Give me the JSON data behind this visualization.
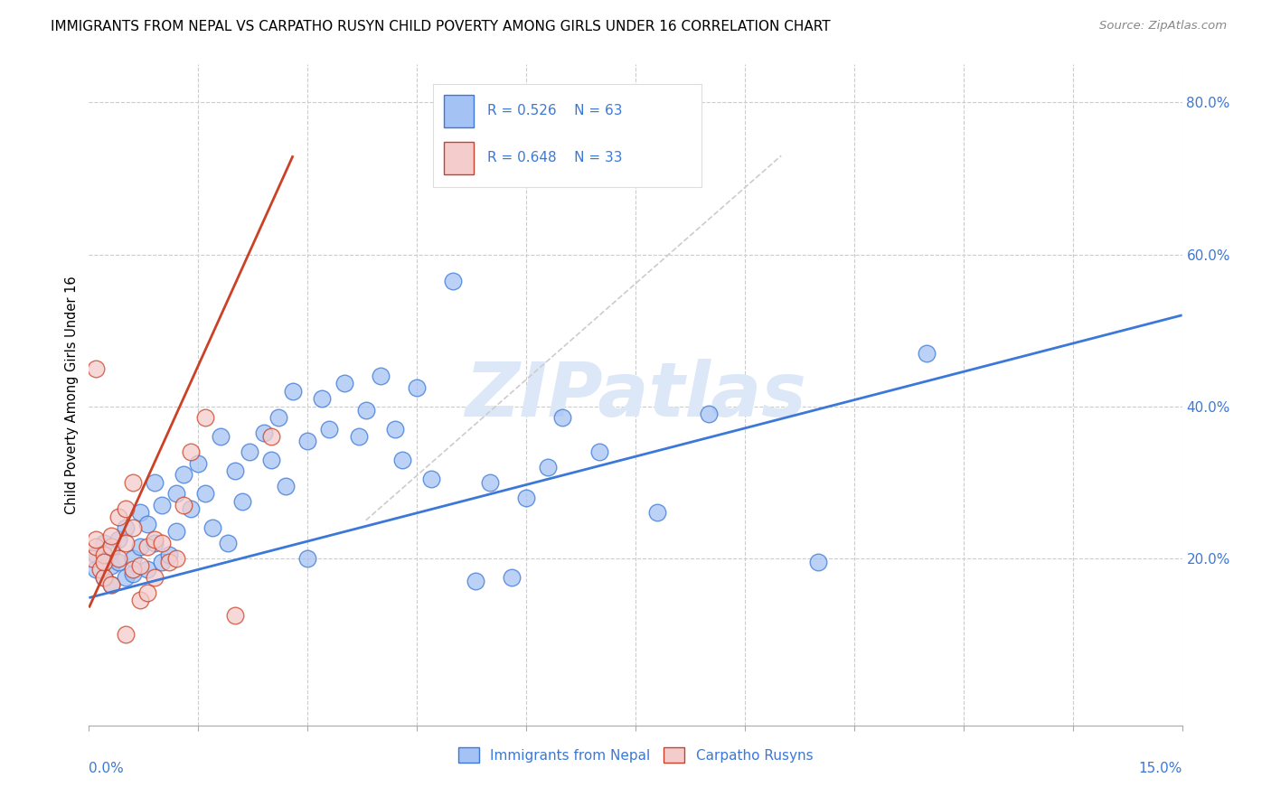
{
  "title": "IMMIGRANTS FROM NEPAL VS CARPATHO RUSYN CHILD POVERTY AMONG GIRLS UNDER 16 CORRELATION CHART",
  "source": "Source: ZipAtlas.com",
  "ylabel": "Child Poverty Among Girls Under 16",
  "xlim": [
    0.0,
    0.15
  ],
  "ylim": [
    -0.02,
    0.85
  ],
  "plot_ylim": [
    0.0,
    0.85
  ],
  "watermark": "ZIPatlas",
  "color_nepal": "#a4c2f4",
  "color_rusyn": "#f4cccc",
  "color_line_nepal": "#3c78d8",
  "color_line_rusyn": "#cc4125",
  "nepal_x": [
    0.001,
    0.001,
    0.002,
    0.002,
    0.003,
    0.003,
    0.003,
    0.004,
    0.004,
    0.005,
    0.005,
    0.006,
    0.006,
    0.007,
    0.007,
    0.008,
    0.008,
    0.009,
    0.009,
    0.01,
    0.01,
    0.011,
    0.012,
    0.012,
    0.013,
    0.014,
    0.015,
    0.016,
    0.017,
    0.018,
    0.019,
    0.02,
    0.021,
    0.022,
    0.024,
    0.025,
    0.026,
    0.027,
    0.028,
    0.03,
    0.03,
    0.032,
    0.033,
    0.035,
    0.037,
    0.038,
    0.04,
    0.042,
    0.043,
    0.045,
    0.047,
    0.05,
    0.053,
    0.055,
    0.058,
    0.06,
    0.063,
    0.065,
    0.07,
    0.078,
    0.085,
    0.1,
    0.115
  ],
  "nepal_y": [
    0.205,
    0.185,
    0.22,
    0.175,
    0.21,
    0.19,
    0.165,
    0.225,
    0.195,
    0.24,
    0.175,
    0.2,
    0.18,
    0.26,
    0.215,
    0.245,
    0.185,
    0.3,
    0.22,
    0.27,
    0.195,
    0.205,
    0.285,
    0.235,
    0.31,
    0.265,
    0.325,
    0.285,
    0.24,
    0.36,
    0.22,
    0.315,
    0.275,
    0.34,
    0.365,
    0.33,
    0.385,
    0.295,
    0.42,
    0.355,
    0.2,
    0.41,
    0.37,
    0.43,
    0.36,
    0.395,
    0.44,
    0.37,
    0.33,
    0.425,
    0.305,
    0.565,
    0.17,
    0.3,
    0.175,
    0.28,
    0.32,
    0.385,
    0.34,
    0.26,
    0.39,
    0.195,
    0.47
  ],
  "rusyn_x": [
    0.0005,
    0.001,
    0.001,
    0.001,
    0.0015,
    0.002,
    0.002,
    0.002,
    0.003,
    0.003,
    0.003,
    0.004,
    0.004,
    0.005,
    0.005,
    0.005,
    0.006,
    0.006,
    0.006,
    0.007,
    0.007,
    0.008,
    0.008,
    0.009,
    0.009,
    0.01,
    0.011,
    0.012,
    0.013,
    0.014,
    0.016,
    0.02,
    0.025
  ],
  "rusyn_y": [
    0.2,
    0.215,
    0.225,
    0.45,
    0.185,
    0.175,
    0.205,
    0.195,
    0.165,
    0.215,
    0.23,
    0.255,
    0.2,
    0.265,
    0.22,
    0.1,
    0.24,
    0.3,
    0.185,
    0.19,
    0.145,
    0.155,
    0.215,
    0.225,
    0.175,
    0.22,
    0.195,
    0.2,
    0.27,
    0.34,
    0.385,
    0.125,
    0.36
  ],
  "nepal_line_x": [
    0.0,
    0.15
  ],
  "nepal_line_y": [
    0.148,
    0.52
  ],
  "rusyn_line_x": [
    0.0,
    0.028
  ],
  "rusyn_line_y": [
    0.135,
    0.73
  ],
  "dashed_line_x": [
    0.038,
    0.095
  ],
  "dashed_line_y": [
    0.25,
    0.73
  ]
}
